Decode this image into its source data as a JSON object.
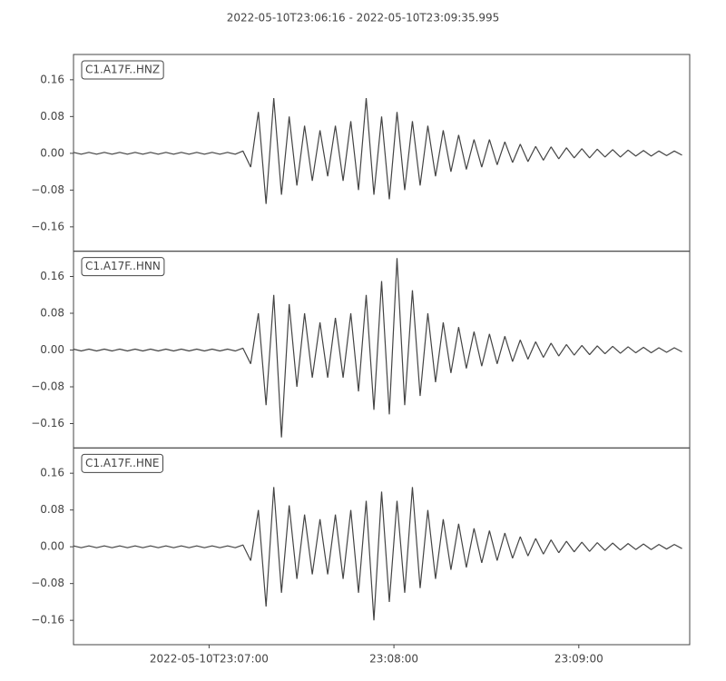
{
  "chart_data": {
    "type": "line",
    "title": "2022-05-10T23:06:16  -  2022-05-10T23:09:35.995",
    "color": "#444444",
    "xlim": [
      0,
      199.995
    ],
    "xticks": [
      {
        "value": 44,
        "label": "2022-05-10T23:07:00"
      },
      {
        "value": 104,
        "label": "23:08:00"
      },
      {
        "value": 164,
        "label": "23:09:00"
      }
    ],
    "ylim": [
      -0.213,
      0.215
    ],
    "yticks": [
      {
        "value": -0.16,
        "label": "−0.16"
      },
      {
        "value": -0.08,
        "label": "−0.08"
      },
      {
        "value": 0,
        "label": "0.00"
      },
      0.08,
      0.16
    ],
    "x": [
      0,
      2.5,
      5,
      7.5,
      10,
      12.5,
      15,
      17.5,
      20,
      22.5,
      25,
      27.5,
      30,
      32.5,
      35,
      37.5,
      40,
      42.5,
      45,
      47.5,
      50,
      52.5,
      55,
      57.5,
      60,
      62.5,
      65,
      67.5,
      70,
      72.5,
      75,
      77.5,
      80,
      82.5,
      85,
      87.5,
      90,
      92.5,
      95,
      97.5,
      100,
      102.5,
      105,
      107.5,
      110,
      112.5,
      115,
      117.5,
      120,
      122.5,
      125,
      127.5,
      130,
      132.5,
      135,
      137.5,
      140,
      142.5,
      145,
      147.5,
      150,
      152.5,
      155,
      157.5,
      160,
      162.5,
      165,
      167.5,
      170,
      172.5,
      175,
      177.5,
      180,
      182.5,
      185,
      187.5,
      190,
      192.5,
      195,
      197.5
    ],
    "series": [
      {
        "name": "C1.A17F..HNZ",
        "values": [
          0.002,
          -0.002,
          0.002,
          -0.002,
          0.002,
          -0.002,
          0.002,
          -0.002,
          0.002,
          -0.002,
          0.002,
          -0.002,
          0.002,
          -0.002,
          0.002,
          -0.002,
          0.002,
          -0.002,
          0.002,
          -0.002,
          0.002,
          -0.002,
          0.005,
          -0.03,
          0.09,
          -0.11,
          0.12,
          -0.09,
          0.08,
          -0.07,
          0.06,
          -0.06,
          0.05,
          -0.05,
          0.06,
          -0.06,
          0.07,
          -0.08,
          0.12,
          -0.09,
          0.08,
          -0.1,
          0.09,
          -0.08,
          0.07,
          -0.07,
          0.06,
          -0.05,
          0.05,
          -0.04,
          0.04,
          -0.035,
          0.03,
          -0.03,
          0.03,
          -0.025,
          0.025,
          -0.02,
          0.02,
          -0.018,
          0.015,
          -0.015,
          0.014,
          -0.012,
          0.012,
          -0.01,
          0.01,
          -0.01,
          0.009,
          -0.008,
          0.008,
          -0.008,
          0.007,
          -0.006,
          0.006,
          -0.006,
          0.005,
          -0.005,
          0.005,
          -0.004
        ]
      },
      {
        "name": "C1.A17F..HNN",
        "values": [
          0.002,
          -0.002,
          0.002,
          -0.002,
          0.002,
          -0.002,
          0.002,
          -0.002,
          0.002,
          -0.002,
          0.002,
          -0.002,
          0.002,
          -0.002,
          0.002,
          -0.002,
          0.002,
          -0.002,
          0.002,
          -0.002,
          0.002,
          -0.002,
          0.004,
          -0.03,
          0.08,
          -0.12,
          0.12,
          -0.19,
          0.1,
          -0.08,
          0.08,
          -0.06,
          0.06,
          -0.06,
          0.07,
          -0.06,
          0.08,
          -0.09,
          0.12,
          -0.13,
          0.15,
          -0.14,
          0.2,
          -0.12,
          0.13,
          -0.1,
          0.08,
          -0.07,
          0.06,
          -0.05,
          0.05,
          -0.04,
          0.04,
          -0.035,
          0.035,
          -0.03,
          0.03,
          -0.025,
          0.022,
          -0.02,
          0.018,
          -0.016,
          0.015,
          -0.013,
          0.012,
          -0.011,
          0.01,
          -0.01,
          0.009,
          -0.008,
          0.008,
          -0.007,
          0.007,
          -0.006,
          0.006,
          -0.006,
          0.005,
          -0.005,
          0.005,
          -0.004
        ]
      },
      {
        "name": "C1.A17F..HNE",
        "values": [
          0.002,
          -0.002,
          0.002,
          -0.002,
          0.002,
          -0.002,
          0.002,
          -0.002,
          0.002,
          -0.002,
          0.002,
          -0.002,
          0.002,
          -0.002,
          0.002,
          -0.002,
          0.002,
          -0.002,
          0.002,
          -0.002,
          0.002,
          -0.002,
          0.004,
          -0.03,
          0.08,
          -0.13,
          0.13,
          -0.1,
          0.09,
          -0.07,
          0.07,
          -0.06,
          0.06,
          -0.06,
          0.07,
          -0.07,
          0.08,
          -0.1,
          0.1,
          -0.16,
          0.12,
          -0.12,
          0.1,
          -0.1,
          0.13,
          -0.09,
          0.08,
          -0.07,
          0.06,
          -0.05,
          0.05,
          -0.045,
          0.04,
          -0.035,
          0.035,
          -0.03,
          0.03,
          -0.025,
          0.022,
          -0.02,
          0.018,
          -0.016,
          0.015,
          -0.013,
          0.012,
          -0.011,
          0.01,
          -0.01,
          0.009,
          -0.008,
          0.008,
          -0.007,
          0.007,
          -0.006,
          0.006,
          -0.006,
          0.005,
          -0.005,
          0.005,
          -0.004
        ]
      }
    ]
  }
}
